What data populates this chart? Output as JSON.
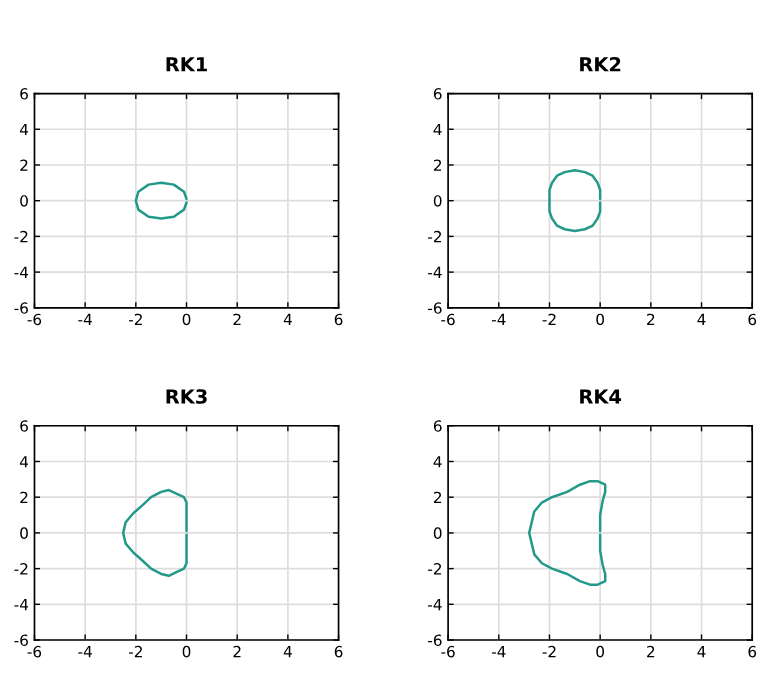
{
  "chart_data": [
    {
      "type": "line",
      "title": "RK1",
      "color": "#23998a",
      "grid": true,
      "xlim": [
        -6,
        6
      ],
      "ylim": [
        -6,
        6
      ],
      "xticks": [
        -6,
        -4,
        -2,
        0,
        2,
        4,
        6
      ],
      "yticks": [
        -6,
        -4,
        -2,
        0,
        2,
        4,
        6
      ],
      "x": [
        0,
        -0.1,
        -0.5,
        -1,
        -1.5,
        -1.9,
        -2,
        -1.9,
        -1.5,
        -1,
        -0.5,
        -0.1,
        0
      ],
      "values": [
        0.1,
        0.5,
        0.9,
        1,
        0.9,
        0.5,
        0,
        -0.5,
        -0.9,
        -1,
        -0.9,
        -0.5,
        -0.1
      ]
    },
    {
      "type": "line",
      "title": "RK2",
      "color": "#23998a",
      "grid": true,
      "xlim": [
        -6,
        6
      ],
      "ylim": [
        -6,
        6
      ],
      "xticks": [
        -6,
        -4,
        -2,
        0,
        2,
        4,
        6
      ],
      "yticks": [
        -6,
        -4,
        -2,
        0,
        2,
        4,
        6
      ],
      "x": [
        0,
        0,
        -0.1,
        -0.3,
        -0.6,
        -1,
        -1.4,
        -1.7,
        -1.9,
        -2,
        -2,
        -2,
        -1.9,
        -1.7,
        -1.4,
        -1,
        -0.6,
        -0.3,
        -0.1,
        0,
        0
      ],
      "values": [
        0.1,
        0.6,
        1.0,
        1.4,
        1.6,
        1.7,
        1.6,
        1.4,
        1.0,
        0.6,
        0,
        -0.6,
        -1.0,
        -1.4,
        -1.6,
        -1.7,
        -1.6,
        -1.4,
        -1.0,
        -0.6,
        -0.1
      ]
    },
    {
      "type": "line",
      "title": "RK3",
      "color": "#23998a",
      "grid": true,
      "xlim": [
        -6,
        6
      ],
      "ylim": [
        -6,
        6
      ],
      "xticks": [
        -6,
        -4,
        -2,
        0,
        2,
        4,
        6
      ],
      "yticks": [
        -6,
        -4,
        -2,
        0,
        2,
        4,
        6
      ],
      "x": [
        0,
        0,
        0,
        -0.1,
        -0.4,
        -0.7,
        -1.0,
        -1.4,
        -1.7,
        -2.1,
        -2.4,
        -2.5,
        -2.4,
        -2.1,
        -1.7,
        -1.4,
        -1.0,
        -0.7,
        -0.4,
        -0.1,
        0,
        0,
        0
      ],
      "values": [
        0.1,
        1.0,
        1.7,
        2.0,
        2.2,
        2.4,
        2.3,
        2.0,
        1.6,
        1.1,
        0.6,
        0,
        -0.6,
        -1.1,
        -1.6,
        -2.0,
        -2.3,
        -2.4,
        -2.2,
        -2.0,
        -1.7,
        -1.0,
        -0.1
      ]
    },
    {
      "type": "line",
      "title": "RK4",
      "color": "#23998a",
      "grid": true,
      "xlim": [
        -6,
        6
      ],
      "ylim": [
        -6,
        6
      ],
      "xticks": [
        -6,
        -4,
        -2,
        0,
        2,
        4,
        6
      ],
      "yticks": [
        -6,
        -4,
        -2,
        0,
        2,
        4,
        6
      ],
      "x": [
        0,
        0,
        0.1,
        0.2,
        0.2,
        -0.1,
        -0.4,
        -0.8,
        -1.3,
        -1.9,
        -2.3,
        -2.6,
        -2.7,
        -2.8,
        -2.7,
        -2.6,
        -2.3,
        -1.9,
        -1.3,
        -0.8,
        -0.4,
        -0.1,
        0.2,
        0.2,
        0.1,
        0,
        0
      ],
      "values": [
        0.1,
        1.0,
        1.8,
        2.3,
        2.7,
        2.9,
        2.9,
        2.7,
        2.3,
        2.0,
        1.7,
        1.2,
        0.6,
        0,
        -0.6,
        -1.2,
        -1.7,
        -2.0,
        -2.3,
        -2.7,
        -2.9,
        -2.9,
        -2.7,
        -2.3,
        -1.8,
        -1.0,
        -0.1
      ]
    }
  ]
}
